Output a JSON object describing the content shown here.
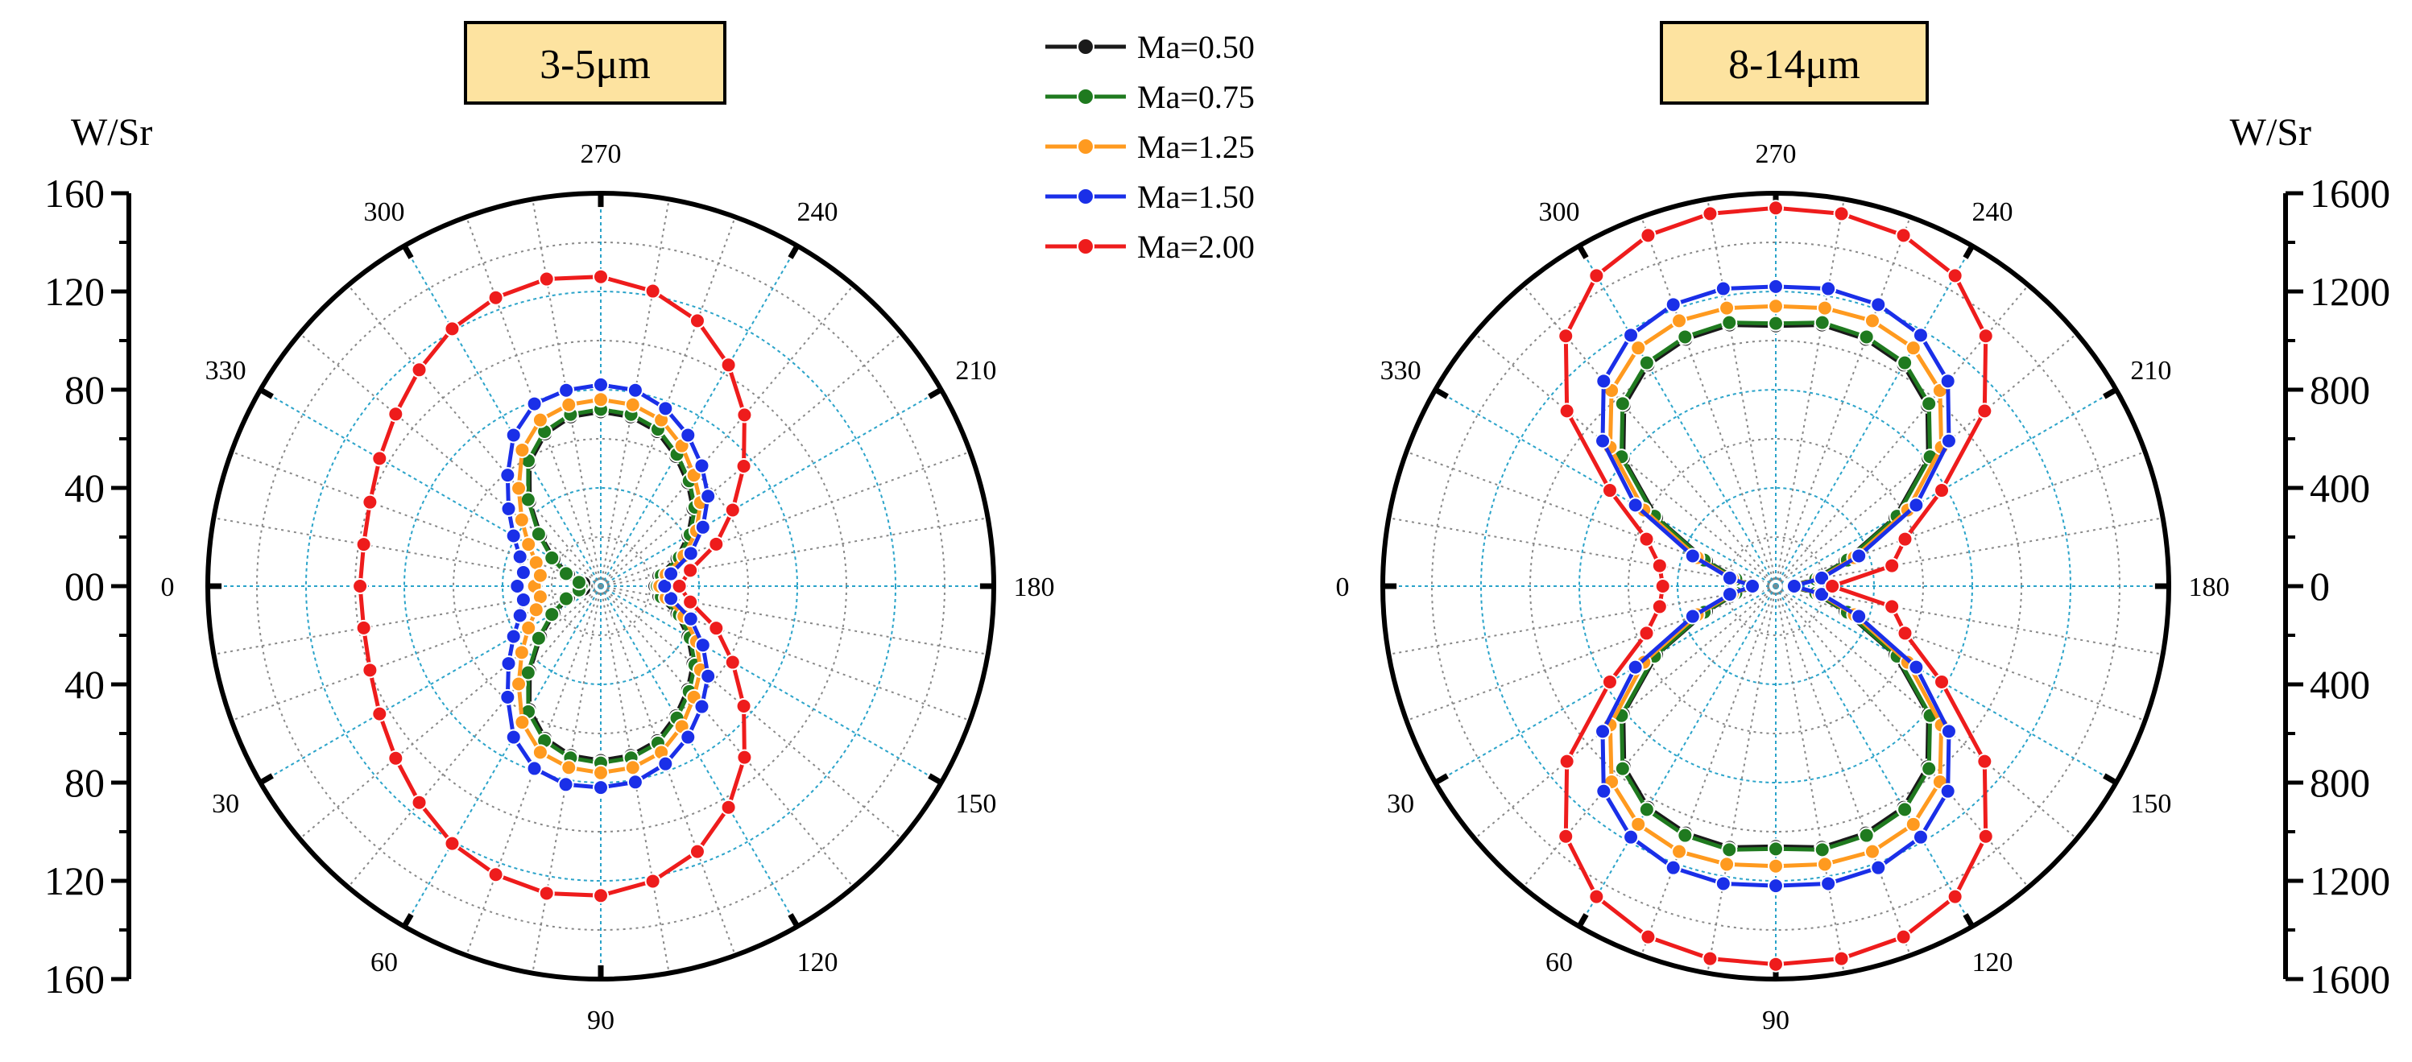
{
  "legend": [
    {
      "label": "Ma=0.50",
      "color": "#1a1a1a"
    },
    {
      "label": "Ma=0.75",
      "color": "#1f7a1f"
    },
    {
      "label": "Ma=1.25",
      "color": "#ff9a1f"
    },
    {
      "label": "Ma=1.50",
      "color": "#1a2fe8"
    },
    {
      "label": "Ma=2.00",
      "color": "#ee1c1c"
    }
  ],
  "chart_data": [
    {
      "type": "polar-line",
      "title": "3-5μm",
      "radial_unit": "W/Sr",
      "r_max": 160,
      "r_ticks": [
        "160",
        "120",
        "80",
        "40",
        "00",
        "40",
        "80",
        "120",
        "160"
      ],
      "angle_labels": [
        "270",
        "240",
        "210",
        "180",
        "150",
        "120",
        "90",
        "60",
        "30",
        "0",
        "330",
        "300"
      ],
      "angles_deg": [
        0,
        10,
        20,
        30,
        40,
        50,
        60,
        70,
        80,
        90,
        100,
        110,
        120,
        130,
        140,
        150,
        160,
        170,
        180,
        190,
        200,
        210,
        220,
        230,
        240,
        250,
        260,
        270,
        280,
        290,
        300,
        310,
        320,
        330,
        340,
        350
      ],
      "series": [
        {
          "name": "Ma=0.50",
          "values": [
            6,
            7,
            14,
            22,
            32,
            45,
            58,
            66,
            70,
            71,
            70,
            67,
            61,
            55,
            49,
            41,
            33,
            24,
            22,
            24,
            33,
            41,
            49,
            55,
            61,
            67,
            70,
            71,
            70,
            66,
            58,
            45,
            32,
            22,
            14,
            7
          ]
        },
        {
          "name": "Ma=0.75",
          "values": [
            8,
            9,
            15,
            23,
            33,
            46,
            59,
            67,
            71,
            72,
            71,
            68,
            62,
            56,
            50,
            42,
            34,
            25,
            23,
            25,
            34,
            42,
            50,
            56,
            62,
            68,
            71,
            72,
            71,
            67,
            59,
            46,
            33,
            23,
            15,
            9
          ]
        },
        {
          "name": "Ma=1.25",
          "values": [
            27,
            25,
            28,
            34,
            42,
            52,
            64,
            72,
            75,
            76,
            75,
            72,
            66,
            59,
            53,
            45,
            36,
            27,
            24,
            27,
            36,
            45,
            53,
            59,
            66,
            72,
            75,
            76,
            75,
            72,
            64,
            52,
            42,
            34,
            28,
            25
          ]
        },
        {
          "name": "Ma=1.50",
          "values": [
            34,
            32,
            35,
            41,
            49,
            59,
            71,
            79,
            82,
            82,
            81,
            77,
            71,
            64,
            57,
            48,
            39,
            29,
            26,
            29,
            39,
            48,
            57,
            64,
            71,
            77,
            81,
            82,
            81,
            79,
            71,
            59,
            49,
            41,
            35,
            32
          ]
        },
        {
          "name": "Ma=2.00",
          "values": [
            98,
            98,
            100,
            104,
            109,
            115,
            121,
            125,
            127,
            126,
            122,
            115,
            104,
            91,
            76,
            62,
            50,
            37,
            32,
            37,
            50,
            62,
            76,
            91,
            104,
            115,
            122,
            126,
            127,
            125,
            121,
            115,
            109,
            104,
            100,
            98
          ]
        }
      ]
    },
    {
      "type": "polar-line",
      "title": "8-14μm",
      "radial_unit": "W/Sr",
      "r_max": 1600,
      "r_ticks": [
        "1600",
        "1200",
        "800",
        "400",
        "0",
        "400",
        "800",
        "1200",
        "1600"
      ],
      "angle_labels": [
        "270",
        "240",
        "210",
        "180",
        "150",
        "120",
        "90",
        "60",
        "30",
        "0",
        "330",
        "300"
      ],
      "angles_deg": [
        0,
        10,
        20,
        30,
        40,
        50,
        60,
        70,
        80,
        90,
        100,
        110,
        120,
        130,
        140,
        150,
        160,
        170,
        180,
        190,
        200,
        210,
        220,
        230,
        240,
        250,
        260,
        270,
        280,
        290,
        300,
        310,
        320,
        330,
        340,
        350
      ],
      "series": [
        {
          "name": "Ma=0.50",
          "values": [
            80,
            160,
            300,
            560,
            810,
            960,
            1040,
            1070,
            1080,
            1060,
            1080,
            1070,
            1040,
            960,
            810,
            560,
            300,
            160,
            60,
            160,
            300,
            560,
            810,
            960,
            1040,
            1070,
            1080,
            1060,
            1080,
            1070,
            1040,
            960,
            810,
            560,
            300,
            160
          ]
        },
        {
          "name": "Ma=0.75",
          "values": [
            85,
            165,
            310,
            570,
            820,
            970,
            1050,
            1080,
            1090,
            1070,
            1090,
            1080,
            1050,
            970,
            820,
            570,
            310,
            165,
            65,
            165,
            310,
            570,
            820,
            970,
            1050,
            1080,
            1090,
            1070,
            1090,
            1080,
            1050,
            970,
            820,
            570,
            310,
            165
          ]
        },
        {
          "name": "Ma=1.25",
          "values": [
            90,
            180,
            340,
            620,
            880,
            1040,
            1120,
            1150,
            1150,
            1140,
            1150,
            1150,
            1120,
            1040,
            880,
            620,
            340,
            180,
            70,
            180,
            340,
            620,
            880,
            1040,
            1120,
            1150,
            1150,
            1140,
            1150,
            1150,
            1120,
            1040,
            880,
            620,
            340,
            180
          ]
        },
        {
          "name": "Ma=1.50",
          "values": [
            95,
            190,
            360,
            660,
            920,
            1090,
            1180,
            1220,
            1230,
            1220,
            1230,
            1220,
            1180,
            1090,
            920,
            660,
            360,
            190,
            75,
            190,
            360,
            660,
            920,
            1090,
            1180,
            1220,
            1230,
            1220,
            1230,
            1220,
            1180,
            1090,
            920,
            660,
            360,
            190
          ]
        },
        {
          "name": "Ma=2.00",
          "values": [
            460,
            480,
            560,
            780,
            1110,
            1330,
            1460,
            1520,
            1540,
            1540,
            1540,
            1520,
            1460,
            1330,
            1110,
            780,
            560,
            480,
            230,
            480,
            560,
            780,
            1110,
            1330,
            1460,
            1520,
            1540,
            1540,
            1540,
            1520,
            1460,
            1330,
            1110,
            780,
            560,
            480
          ]
        }
      ]
    }
  ]
}
